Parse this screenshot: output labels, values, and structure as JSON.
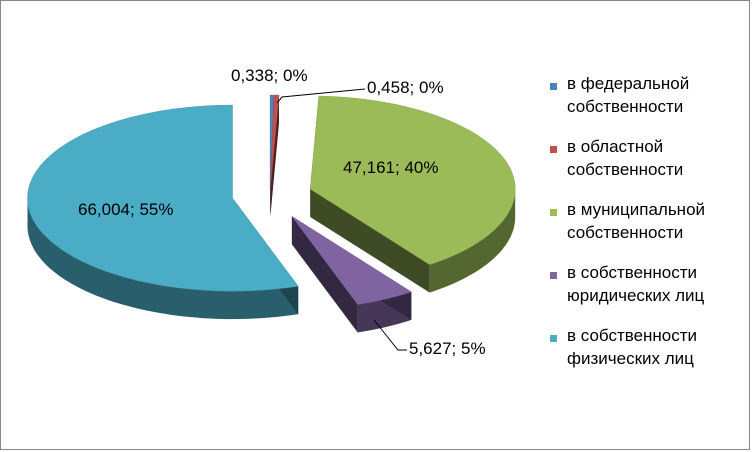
{
  "chart_data": {
    "type": "pie",
    "categories": [
      "в федеральной собственности",
      "в областной собственности",
      "в муниципальной собственности",
      "в собственности юридических лиц",
      "в собственности физических лиц"
    ],
    "values": [
      0.338,
      0.458,
      47.161,
      5.627,
      66.004
    ],
    "percent_labels": [
      "0%",
      "0%",
      "40%",
      "5%",
      "55%"
    ],
    "data_labels": [
      "0,338; 0%",
      "0,458; 0%",
      "47,161; 40%",
      "5,627; 5%",
      "66,004; 55%"
    ],
    "colors": [
      "#4F81BD",
      "#C0504D",
      "#9BBB59",
      "#8064A2",
      "#4BACC6"
    ],
    "style": "3d-exploded",
    "legend": "right"
  },
  "legend": {
    "items": [
      {
        "line1": "в федеральной",
        "line2": "собственности",
        "color": "#4F81BD"
      },
      {
        "line1": "в областной",
        "line2": "собственности",
        "color": "#C0504D"
      },
      {
        "line1": "в муниципальной",
        "line2": "собственности",
        "color": "#9BBB59"
      },
      {
        "line1": "в собственности",
        "line2": "юридических лиц",
        "color": "#8064A2"
      },
      {
        "line1": "в собственности",
        "line2": "физических лиц",
        "color": "#4BACC6"
      }
    ]
  }
}
